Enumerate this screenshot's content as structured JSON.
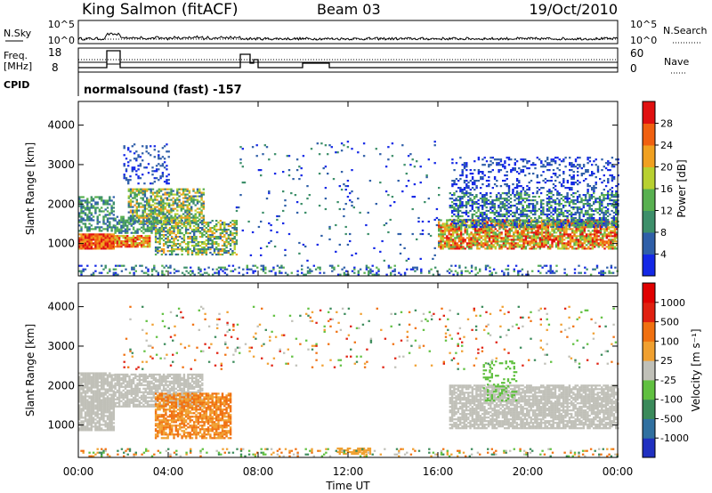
{
  "header": {
    "station": "King Salmon (fitACF)",
    "beam": "Beam 03",
    "date": "19/Oct/2010"
  },
  "panels": {
    "nsky": {
      "left_label": "N.Sky",
      "right_label": "N.Search",
      "tick_top": "10^5",
      "tick_bottom": "10^0"
    },
    "freq": {
      "left_label_1": "Freq.",
      "left_label_2": "[MHz]",
      "tick_top": "18",
      "tick_bottom": "8",
      "right_label": "Nave",
      "right_tick_top": "60",
      "right_tick_bottom": "0"
    },
    "cpid": {
      "left_label": "CPID",
      "text": "normalsound (fast) -157"
    }
  },
  "chart_data": [
    {
      "type": "heatmap",
      "name": "power",
      "ylabel": "Slant Range [km]",
      "ylim": [
        180,
        4600
      ],
      "yticks": [
        1000,
        2000,
        3000,
        4000
      ],
      "xlabel": "Time UT",
      "xticks": [
        "00:00",
        "04:00",
        "08:00",
        "12:00",
        "16:00",
        "20:00",
        "00:00"
      ],
      "colorbar": {
        "label": "Power [dB]",
        "ticks": [
          "4",
          "8",
          "12",
          "16",
          "20",
          "24",
          "28"
        ],
        "colors": [
          "#1428e6",
          "#2f5fa8",
          "#3d8f6a",
          "#58b050",
          "#b8d030",
          "#f0a020",
          "#f06010",
          "#e01010"
        ]
      }
    },
    {
      "type": "heatmap",
      "name": "velocity",
      "ylabel": "Slant Range [km]",
      "ylim": [
        180,
        4600
      ],
      "yticks": [
        1000,
        2000,
        3000,
        4000
      ],
      "xlabel": "Time UT",
      "xticks": [
        "00:00",
        "04:00",
        "08:00",
        "12:00",
        "16:00",
        "20:00",
        "00:00"
      ],
      "colorbar": {
        "label": "Velocity [m s⁻¹]",
        "ticks": [
          "1000",
          "500",
          "100",
          "25",
          "-25",
          "-100",
          "-500",
          "-1000"
        ],
        "colors": [
          "#2030c0",
          "#3070a0",
          "#3a8a5a",
          "#60c040",
          "#c0c0b8",
          "#f0a030",
          "#f07010",
          "#e02010",
          "#e00000"
        ]
      }
    }
  ]
}
